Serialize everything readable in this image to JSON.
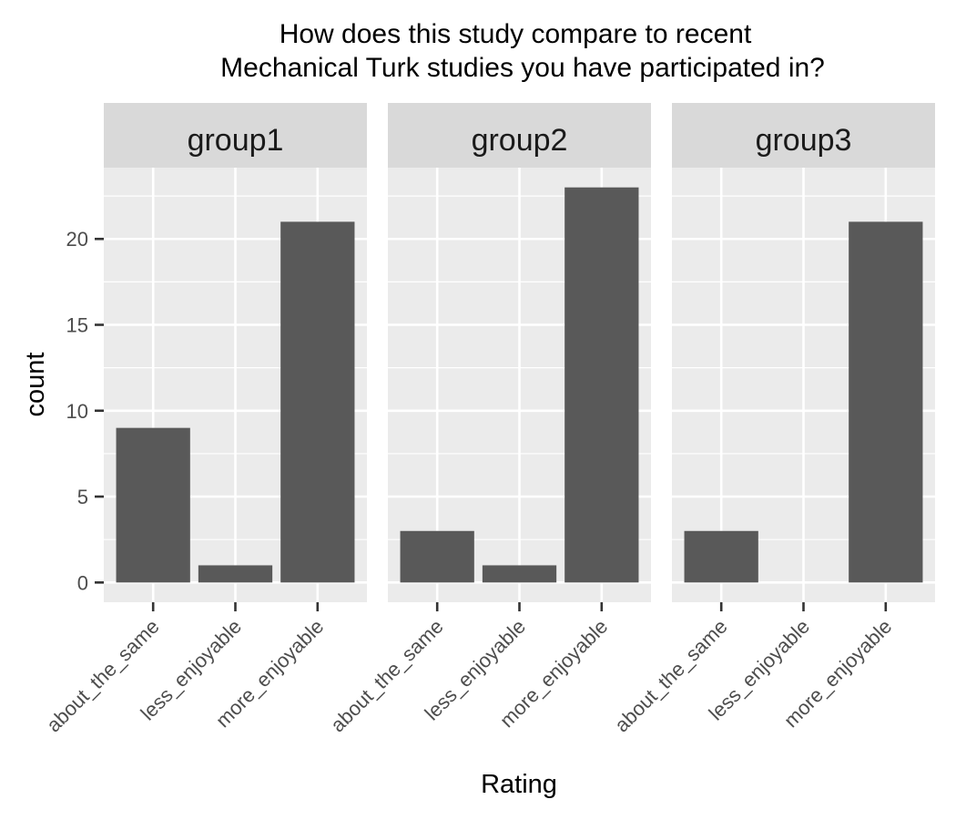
{
  "chart_data": {
    "type": "bar",
    "title_lines": [
      "How does this study compare to recent",
      "Mechanical Turk studies you have participated in?"
    ],
    "xlabel": "Rating",
    "ylabel": "count",
    "categories": [
      "about_the_same",
      "less_enjoyable",
      "more_enjoyable"
    ],
    "yticks": [
      0,
      5,
      10,
      15,
      20
    ],
    "ylim": [
      -1.15,
      24.15
    ],
    "grid": true,
    "legend": "none",
    "bar_color": "#595959",
    "panel_bg": "#ebebeb",
    "strip_bg": "#d9d9d9",
    "panels": [
      {
        "name": "group1",
        "values": [
          9,
          1,
          21
        ]
      },
      {
        "name": "group2",
        "values": [
          3,
          1,
          23
        ]
      },
      {
        "name": "group3",
        "values": [
          3,
          0,
          21
        ]
      }
    ]
  }
}
